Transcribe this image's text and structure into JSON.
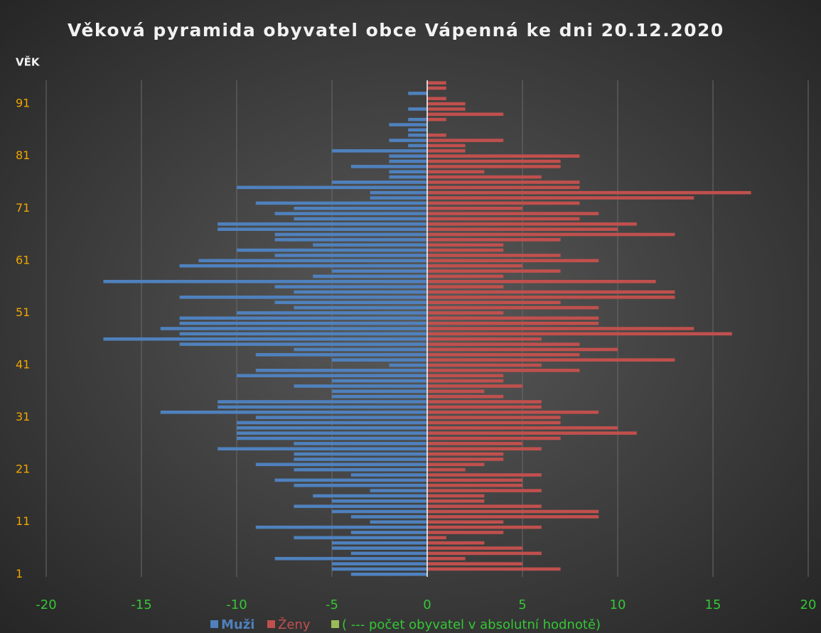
{
  "chart_data": {
    "type": "pyramid",
    "title": "Věková pyramida obyvatel obce Vápenná ke dni 20.12.2020",
    "y_label": "VĚK",
    "categories": [
      null,
      null,
      null,
      null,
      "91",
      null,
      null,
      null,
      null,
      null,
      null,
      null,
      null,
      null,
      "81",
      null,
      null,
      null,
      null,
      null,
      null,
      null,
      null,
      null,
      "71",
      null,
      null,
      null,
      null,
      null,
      null,
      null,
      null,
      null,
      "61",
      null,
      null,
      null,
      null,
      null,
      null,
      null,
      null,
      null,
      "51",
      null,
      null,
      null,
      null,
      null,
      null,
      null,
      null,
      null,
      "41",
      null,
      null,
      null,
      null,
      null,
      null,
      null,
      null,
      null,
      "31",
      null,
      null,
      null,
      null,
      null,
      null,
      null,
      null,
      null,
      "21",
      null,
      null,
      null,
      null,
      null,
      null,
      null,
      null,
      null,
      "11",
      null,
      null,
      null,
      null,
      null,
      null,
      null,
      null,
      null,
      "1"
    ],
    "series": [
      {
        "name": "Muži",
        "color": "#4f81bd",
        "values": [
          0,
          0,
          -1,
          0,
          0,
          -1,
          0,
          -1,
          -2,
          -1,
          -1,
          -2,
          -1,
          -5,
          -2,
          -2,
          -4,
          -2,
          -2,
          -5,
          -10,
          -3,
          -3,
          -9,
          -7,
          -8,
          -7,
          -11,
          -11,
          -8,
          -8,
          -6,
          -10,
          -8,
          -12,
          -13,
          -5,
          -6,
          -17,
          -8,
          -7,
          -13,
          -8,
          -7,
          -10,
          -13,
          -13,
          -14,
          -13,
          -17,
          -13,
          -7,
          -9,
          -5,
          -2,
          -9,
          -10,
          -5,
          -7,
          -5,
          -5,
          -11,
          -11,
          -14,
          -9,
          -10,
          -10,
          -10,
          -10,
          -7,
          -11,
          -7,
          -7,
          -9,
          -7,
          -4,
          -8,
          -7,
          -3,
          -6,
          -5,
          -7,
          -5,
          -4,
          -3,
          -9,
          -4,
          -7,
          -5,
          -5,
          -4,
          -8,
          -5,
          -5,
          -4
        ]
      },
      {
        "name": "Ženy",
        "color": "#c0504d",
        "values": [
          1,
          1,
          0,
          1,
          2,
          2,
          4,
          1,
          0,
          0,
          1,
          4,
          2,
          2,
          8,
          7,
          7,
          3,
          6,
          8,
          8,
          17,
          14,
          8,
          5,
          9,
          8,
          11,
          10,
          13,
          7,
          4,
          4,
          7,
          9,
          5,
          7,
          4,
          12,
          4,
          13,
          13,
          7,
          9,
          4,
          9,
          9,
          14,
          16,
          6,
          8,
          10,
          8,
          13,
          6,
          8,
          4,
          4,
          5,
          3,
          4,
          6,
          6,
          9,
          7,
          7,
          10,
          11,
          7,
          5,
          6,
          4,
          4,
          3,
          2,
          6,
          5,
          5,
          6,
          3,
          3,
          6,
          9,
          9,
          4,
          6,
          4,
          1,
          3,
          5,
          6,
          2,
          5,
          7,
          0
        ]
      },
      {
        "name": "( --- počet obyvatel v absolutní hodnotě)",
        "color": "#9bbb59",
        "values": [
          null,
          null,
          null,
          null,
          null,
          null,
          null,
          null,
          null,
          null,
          null,
          null,
          null,
          null,
          null,
          null,
          null,
          null,
          null,
          null,
          null,
          null,
          null,
          null,
          null,
          null,
          null,
          null,
          null,
          null,
          null,
          null,
          null,
          null,
          null,
          null,
          null,
          null,
          null,
          null,
          null,
          null,
          null,
          null,
          null,
          null,
          null,
          null,
          null,
          null,
          null,
          null,
          null,
          null,
          null,
          null,
          null,
          null,
          null,
          null,
          null,
          null,
          null,
          null,
          null,
          null,
          null,
          null,
          null,
          null,
          null,
          null,
          null,
          null,
          null,
          null,
          null,
          null,
          null,
          null,
          null,
          null,
          null,
          null,
          null,
          null,
          null,
          null,
          null,
          null,
          null,
          null,
          null,
          null,
          null
        ]
      }
    ],
    "xlim": [
      -20,
      20
    ],
    "xticks": [
      -20,
      -15,
      -10,
      -5,
      0,
      5,
      10,
      15,
      20
    ],
    "grid": true
  }
}
